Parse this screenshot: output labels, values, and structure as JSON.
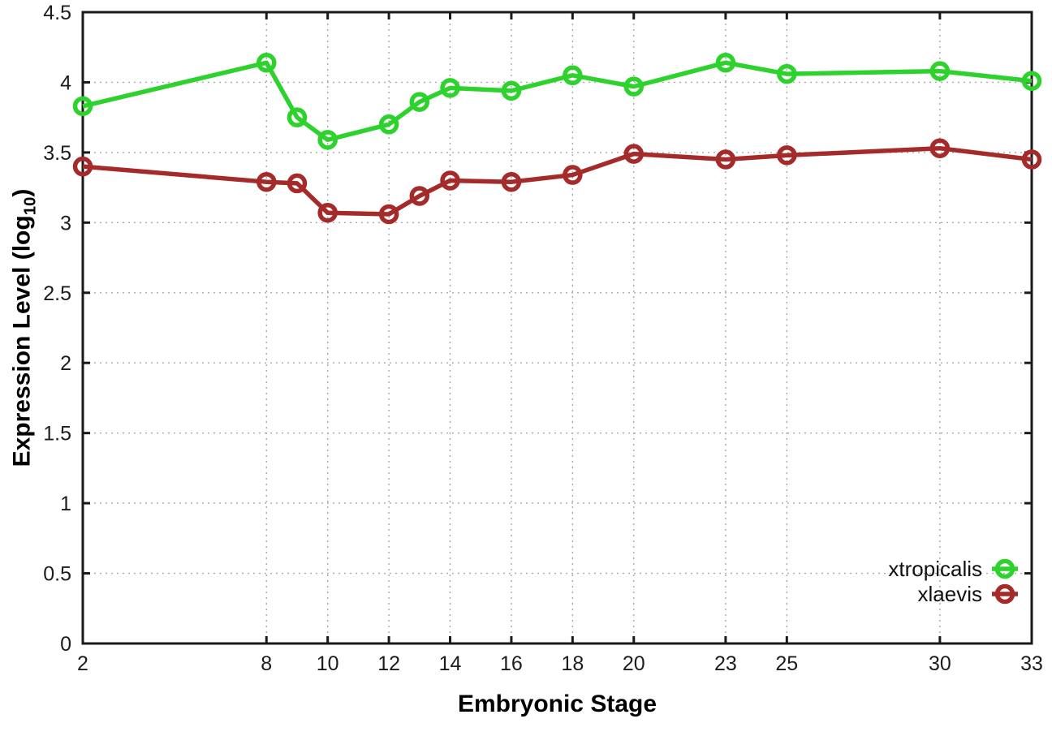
{
  "figure": {
    "background": "#ffffff",
    "border_color": "#1a1a1a",
    "grid_color": "#a8a8a8"
  },
  "chart_data": {
    "type": "line",
    "title": "",
    "xlabel": "Embryonic Stage",
    "ylabel": "Expression Level (log10)",
    "ylabel_prefix": "Expression Level (log",
    "ylabel_sub": "10",
    "ylabel_suffix": ")",
    "x": [
      2,
      8,
      9,
      10,
      12,
      13,
      14,
      16,
      18,
      20,
      23,
      25,
      30,
      33
    ],
    "series": [
      {
        "name": "xtropicalis",
        "color": "#2dd22d",
        "values": [
          3.83,
          4.14,
          3.75,
          3.59,
          3.7,
          3.86,
          3.96,
          3.94,
          4.05,
          3.97,
          4.14,
          4.06,
          4.08,
          4.01
        ]
      },
      {
        "name": "xlaevis",
        "color": "#a52a2a",
        "values": [
          3.4,
          3.29,
          3.28,
          3.07,
          3.06,
          3.19,
          3.3,
          3.29,
          3.34,
          3.49,
          3.45,
          3.48,
          3.53,
          3.45
        ]
      }
    ],
    "xlim": [
      2,
      33
    ],
    "ylim": [
      0,
      4.5
    ],
    "xticks": [
      2,
      8,
      10,
      12,
      14,
      16,
      18,
      20,
      23,
      25,
      30,
      33
    ],
    "xtick_labels": [
      "2",
      "8",
      "10",
      "12",
      "14",
      "16",
      "18",
      "20",
      "23",
      "25",
      "30",
      "33"
    ],
    "yticks": [
      0,
      0.5,
      1,
      1.5,
      2,
      2.5,
      3,
      3.5,
      4,
      4.5
    ],
    "ytick_labels": [
      "0",
      "0.5",
      "1",
      "1.5",
      "2",
      "2.5",
      "3",
      "3.5",
      "4",
      "4.5"
    ],
    "grid": true,
    "legend_position": "bottom-right",
    "marker": "open-circle"
  }
}
